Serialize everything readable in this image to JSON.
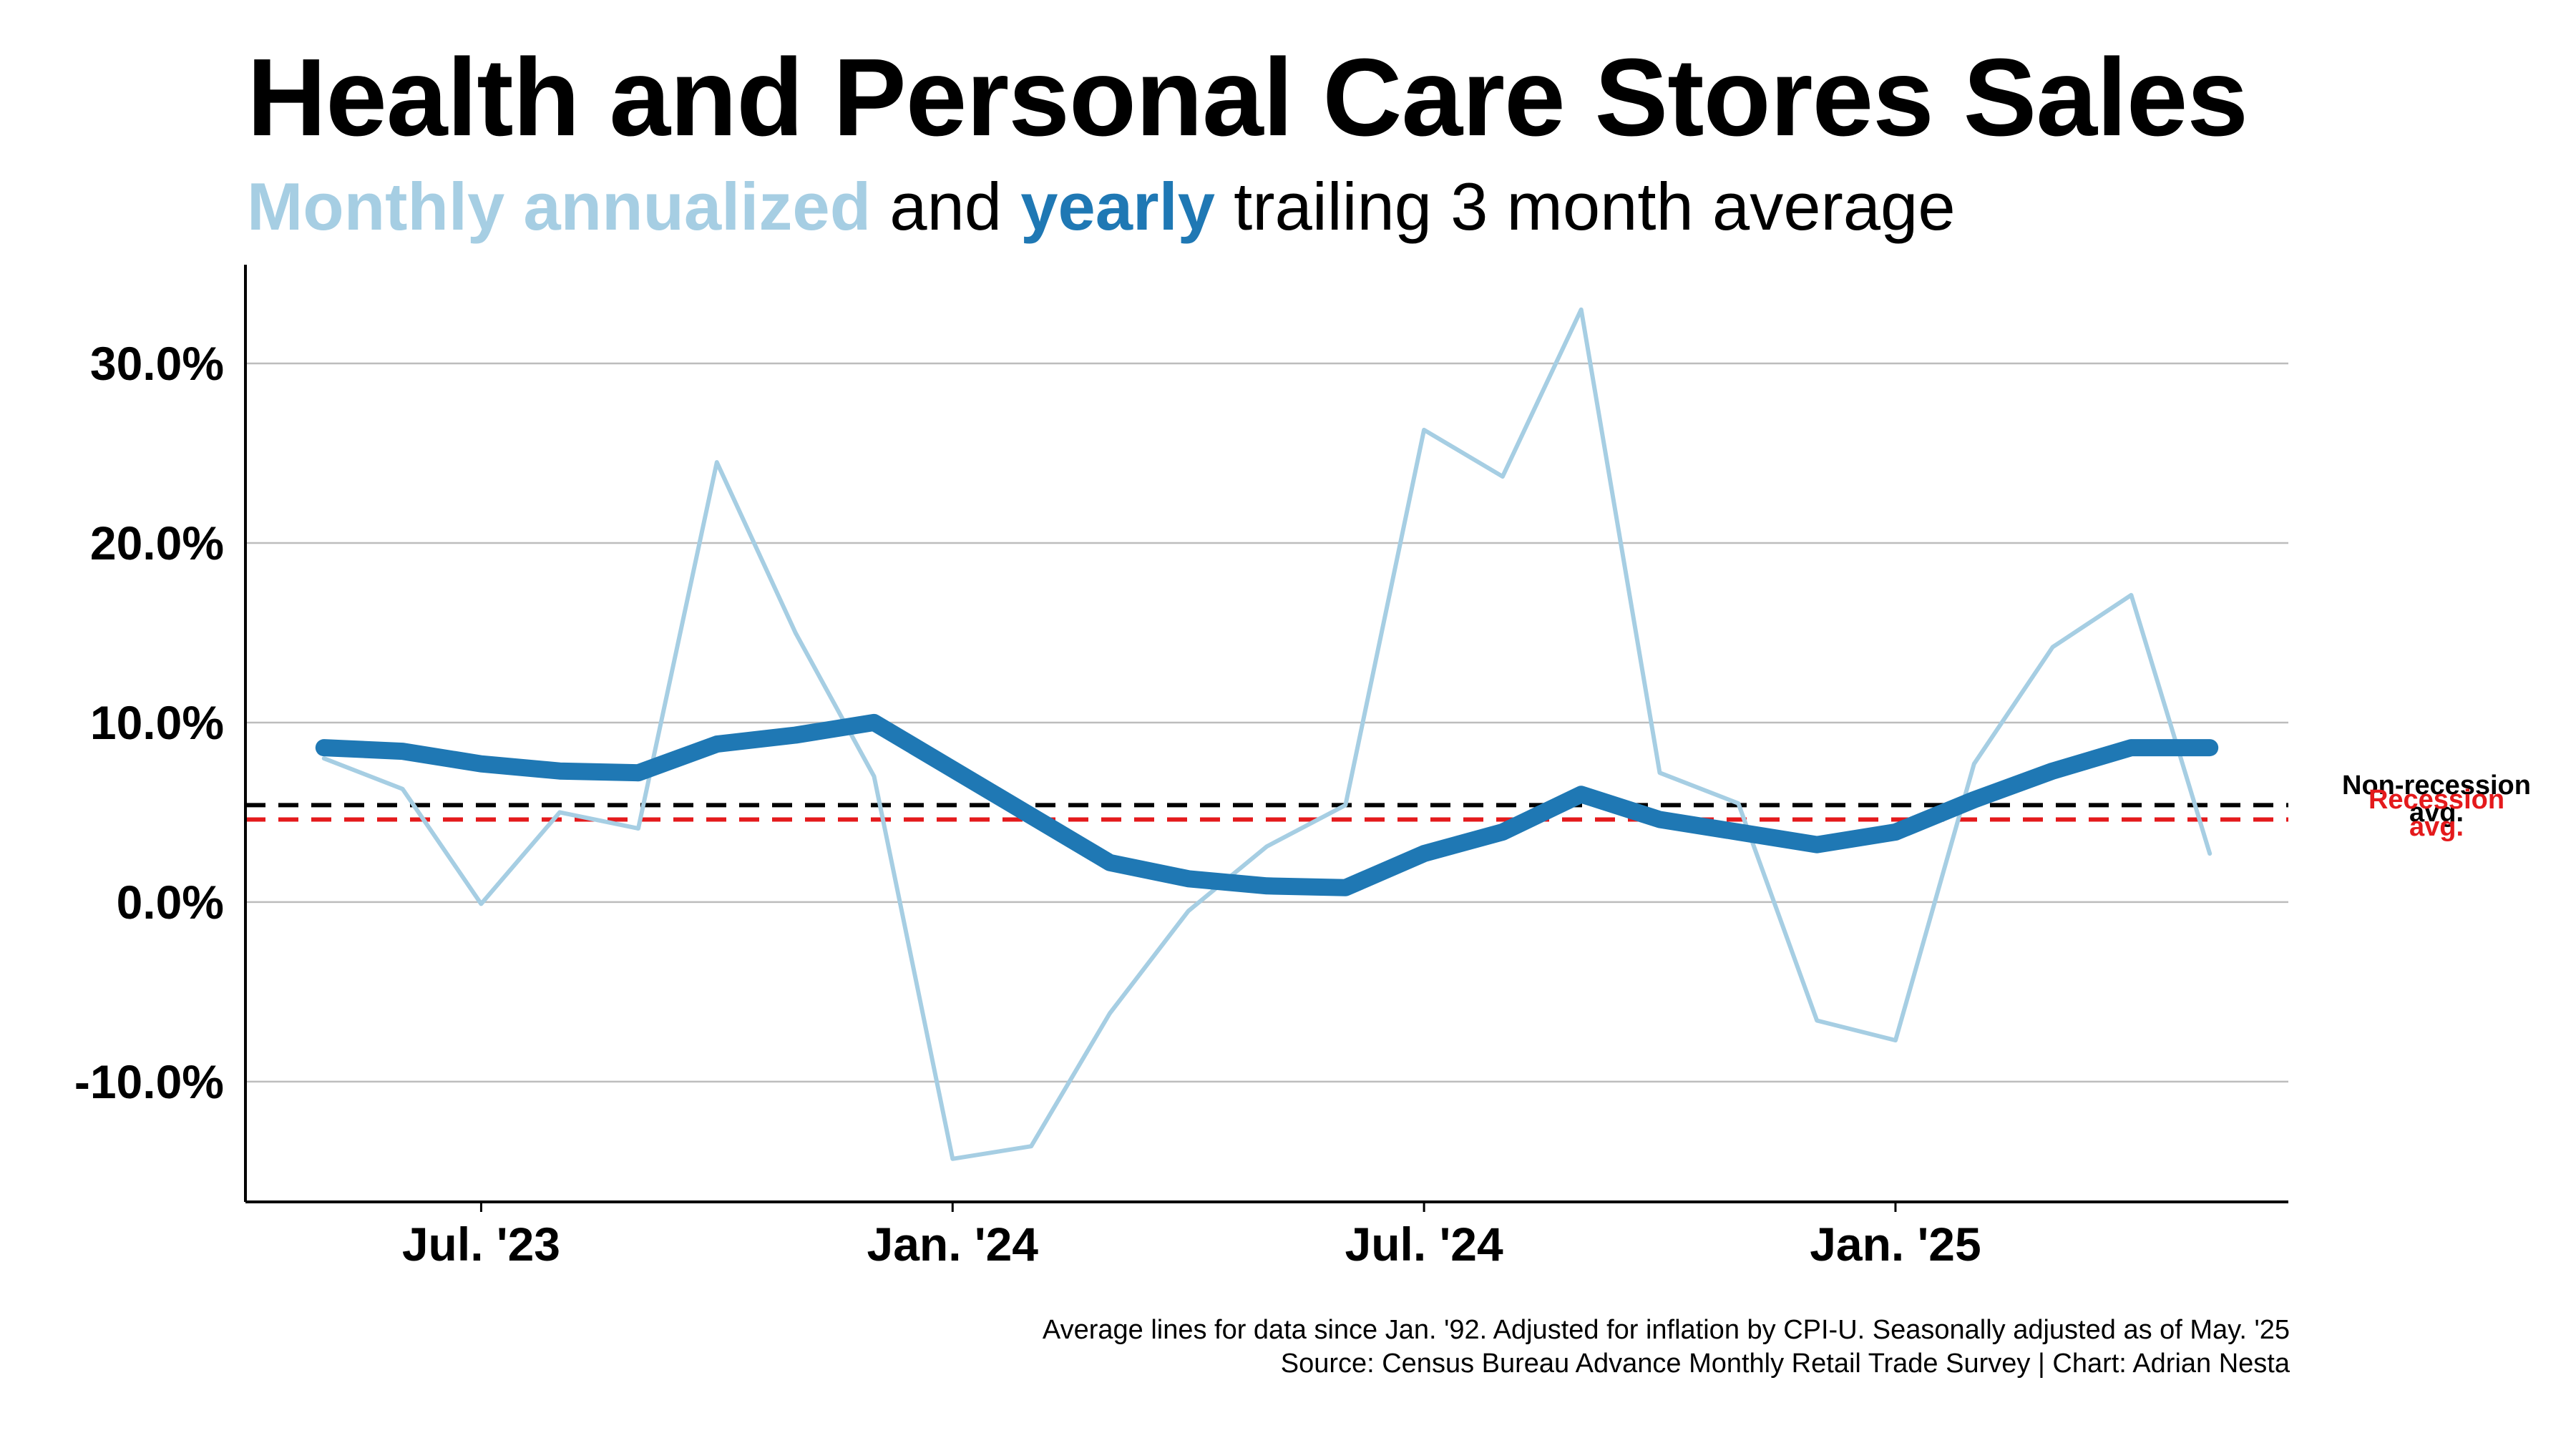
{
  "header": {
    "title": "Health and Personal Care Stores Sales",
    "subtitle_monthly": "Monthly annualized",
    "subtitle_and": " and ",
    "subtitle_yearly": "yearly",
    "subtitle_rest": " trailing 3 month average"
  },
  "footer": {
    "line1": "Average lines for data since Jan. '92. Adjusted for inflation by CPI-U. Seasonally adjusted as of May. '25",
    "line2": "Source: Census Bureau Advance Monthly Retail Trade Survey | Chart: Adrian Nesta"
  },
  "colors": {
    "monthly": "#a6cee3",
    "yearly": "#1f78b4",
    "non_recession": "#000000",
    "recession": "#e41a1c",
    "grid": "#bdbdbd"
  },
  "chart_data": {
    "type": "line",
    "x": [
      "2023-05",
      "2023-06",
      "2023-07",
      "2023-08",
      "2023-09",
      "2023-10",
      "2023-11",
      "2023-12",
      "2024-01",
      "2024-02",
      "2024-03",
      "2024-04",
      "2024-05",
      "2024-06",
      "2024-07",
      "2024-08",
      "2024-09",
      "2024-10",
      "2024-11",
      "2024-12",
      "2025-01",
      "2025-02",
      "2025-03",
      "2025-04",
      "2025-05"
    ],
    "series": [
      {
        "name": "Monthly annualized",
        "values": [
          8.0,
          6.3,
          -0.1,
          5.0,
          4.1,
          24.5,
          15.0,
          7.0,
          -14.3,
          -13.6,
          -6.2,
          -0.5,
          3.1,
          5.4,
          26.3,
          23.7,
          33.0,
          7.2,
          5.5,
          -6.6,
          -7.7,
          7.7,
          14.2,
          17.1,
          2.7
        ]
      },
      {
        "name": "yearly",
        "values": [
          8.6,
          8.4,
          7.7,
          7.3,
          7.2,
          8.8,
          9.3,
          10.0,
          7.4,
          4.8,
          2.2,
          1.3,
          0.9,
          0.8,
          2.7,
          3.9,
          6.0,
          4.6,
          3.9,
          3.2,
          3.9,
          5.7,
          7.3,
          8.6,
          8.6
        ]
      }
    ],
    "reference_lines": [
      {
        "label_line1": "Non-recession",
        "label_line2": "avg.",
        "value": 5.4
      },
      {
        "label_line1": "Recession",
        "label_line2": "avg.",
        "value": 4.6
      }
    ],
    "yticks": [
      {
        "value": -10,
        "label": "-10.0%"
      },
      {
        "value": 0,
        "label": "0.0%"
      },
      {
        "value": 10,
        "label": "10.0%"
      },
      {
        "value": 20,
        "label": "20.0%"
      },
      {
        "value": 30,
        "label": "30.0%"
      }
    ],
    "xticks": [
      {
        "x": "2023-07",
        "label": "Jul. '23"
      },
      {
        "x": "2024-01",
        "label": "Jan. '24"
      },
      {
        "x": "2024-07",
        "label": "Jul. '24"
      },
      {
        "x": "2025-01",
        "label": "Jan. '25"
      }
    ],
    "ylim": [
      -16.7,
      35.5
    ],
    "xlim": [
      "2023-04",
      "2025-06"
    ],
    "grid": "horizontal",
    "legend": "in subtitle"
  }
}
